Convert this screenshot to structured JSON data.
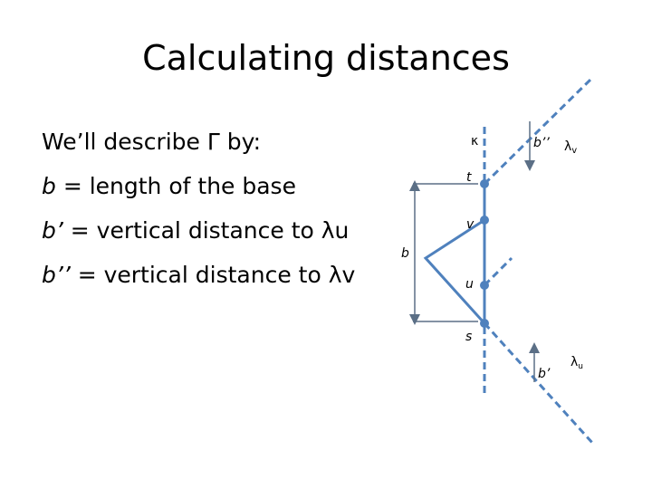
{
  "title": "Calculating distances",
  "lines": [
    {
      "var": "",
      "text": "We’ll describe Γ by:"
    },
    {
      "var": "b",
      "text": " = length of the base"
    },
    {
      "var": "b’",
      "text": " = vertical distance to λu"
    },
    {
      "var": "b’’",
      "text": " = vertical distance to λv"
    }
  ],
  "diagram": {
    "kappa": "κ",
    "t": "t",
    "v": "v",
    "b": "b",
    "u": "u",
    "s": "s",
    "b2": "b’’",
    "b1": "b’",
    "lambda_v": {
      "symbol": "λ",
      "sub": "v"
    },
    "lambda_u": {
      "symbol": "λ",
      "sub": "u"
    }
  }
}
